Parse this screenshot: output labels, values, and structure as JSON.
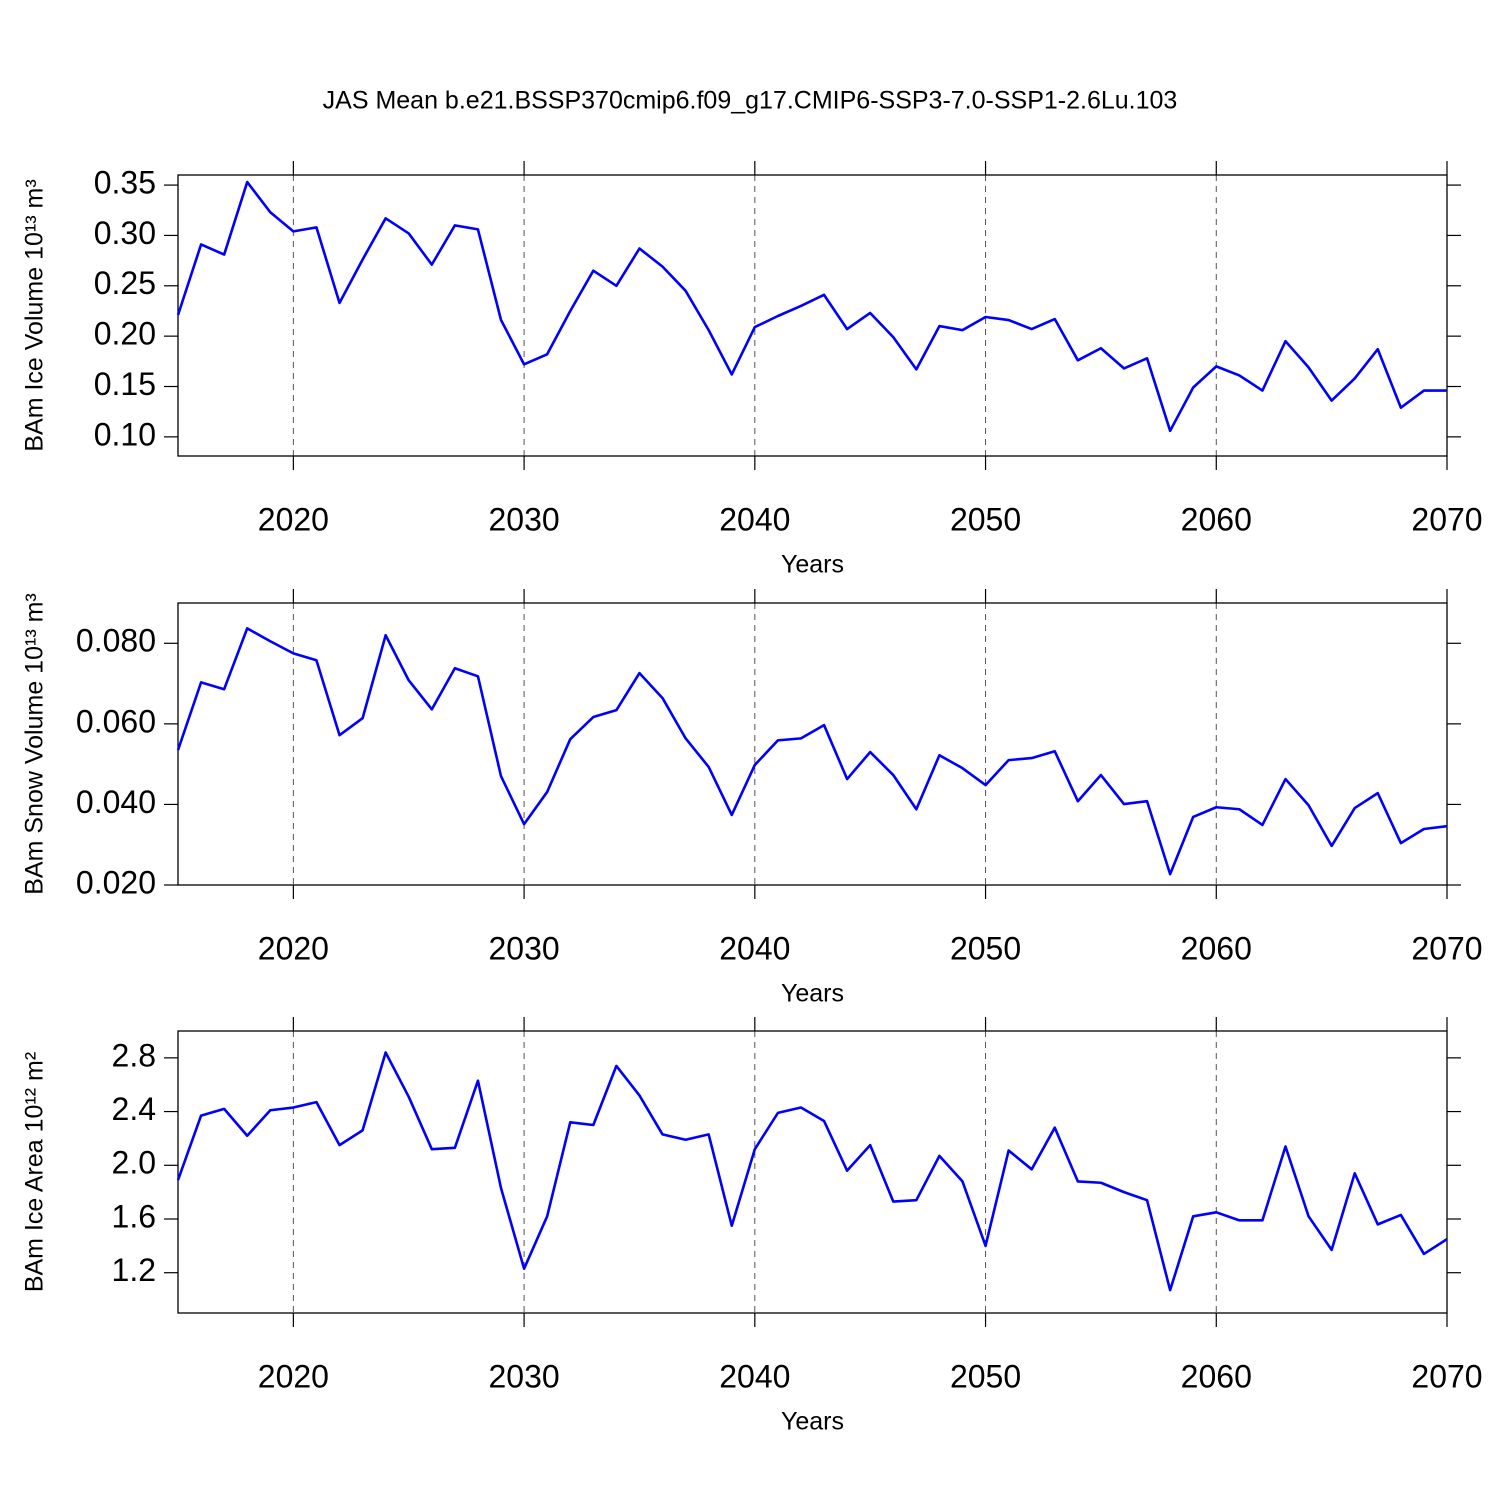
{
  "title": "JAS Mean b.e21.BSSP370cmip6.f09_g17.CMIP6-SSP3-7.0-SSP1-2.6Lu.103",
  "chart_data": [
    {
      "type": "line",
      "ylabel": "BAm Ice Volume 10¹³ m³",
      "xlabel": "Years",
      "color": "#0000ff",
      "xgrid": true,
      "x": [
        2015,
        2016,
        2017,
        2018,
        2019,
        2020,
        2021,
        2022,
        2023,
        2024,
        2025,
        2026,
        2027,
        2028,
        2029,
        2030,
        2031,
        2032,
        2033,
        2034,
        2035,
        2036,
        2037,
        2038,
        2039,
        2040,
        2041,
        2042,
        2043,
        2044,
        2045,
        2046,
        2047,
        2048,
        2049,
        2050,
        2051,
        2052,
        2053,
        2054,
        2055,
        2056,
        2057,
        2058,
        2059,
        2060,
        2061,
        2062,
        2063,
        2064,
        2065,
        2066,
        2067,
        2068,
        2069,
        2070
      ],
      "values": [
        0.221,
        0.291,
        0.281,
        0.353,
        0.323,
        0.304,
        0.308,
        0.233,
        0.276,
        0.317,
        0.302,
        0.271,
        0.31,
        0.306,
        0.216,
        0.172,
        0.182,
        0.225,
        0.265,
        0.25,
        0.287,
        0.269,
        0.245,
        0.206,
        0.162,
        0.209,
        0.22,
        0.23,
        0.241,
        0.207,
        0.223,
        0.199,
        0.167,
        0.21,
        0.206,
        0.219,
        0.216,
        0.207,
        0.217,
        0.176,
        0.188,
        0.168,
        0.178,
        0.106,
        0.149,
        0.17,
        0.161,
        0.146,
        0.195,
        0.169,
        0.136,
        0.158,
        0.187,
        0.129,
        0.146,
        0.146
      ],
      "xlim": [
        2015,
        2070
      ],
      "xticks": [
        2020,
        2030,
        2040,
        2050,
        2060,
        2070
      ],
      "ylim": [
        0.081,
        0.36
      ],
      "yticks": [
        {
          "value": 0.1,
          "label": "0.10"
        },
        {
          "value": 0.15,
          "label": "0.15"
        },
        {
          "value": 0.2,
          "label": "0.20"
        },
        {
          "value": 0.25,
          "label": "0.25"
        },
        {
          "value": 0.3,
          "label": "0.30"
        },
        {
          "value": 0.35,
          "label": "0.35"
        }
      ]
    },
    {
      "type": "line",
      "ylabel": "BAm Snow Volume 10¹³ m³",
      "xlabel": "Years",
      "color": "#0000ff",
      "xgrid": true,
      "x": [
        2015,
        2016,
        2017,
        2018,
        2019,
        2020,
        2021,
        2022,
        2023,
        2024,
        2025,
        2026,
        2027,
        2028,
        2029,
        2030,
        2031,
        2032,
        2033,
        2034,
        2035,
        2036,
        2037,
        2038,
        2039,
        2040,
        2041,
        2042,
        2043,
        2044,
        2045,
        2046,
        2047,
        2048,
        2049,
        2050,
        2051,
        2052,
        2053,
        2054,
        2055,
        2056,
        2057,
        2058,
        2059,
        2060,
        2061,
        2062,
        2063,
        2064,
        2065,
        2066,
        2067,
        2068,
        2069,
        2070
      ],
      "values": [
        0.0535,
        0.0703,
        0.0686,
        0.0837,
        0.0805,
        0.0775,
        0.0758,
        0.0572,
        0.0614,
        0.082,
        0.0708,
        0.0636,
        0.0738,
        0.0718,
        0.047,
        0.0351,
        0.0431,
        0.0562,
        0.0617,
        0.0634,
        0.0726,
        0.0664,
        0.0564,
        0.0493,
        0.0374,
        0.0498,
        0.0559,
        0.0564,
        0.0597,
        0.0463,
        0.053,
        0.0473,
        0.0388,
        0.0522,
        0.049,
        0.0448,
        0.051,
        0.0515,
        0.0532,
        0.0408,
        0.0473,
        0.0401,
        0.0408,
        0.0227,
        0.0369,
        0.0393,
        0.0388,
        0.0349,
        0.0463,
        0.0398,
        0.0297,
        0.0391,
        0.0428,
        0.0304,
        0.0339,
        0.0346
      ],
      "xlim": [
        2015,
        2070
      ],
      "xticks": [
        2020,
        2030,
        2040,
        2050,
        2060,
        2070
      ],
      "ylim": [
        0.02,
        0.09
      ],
      "yticks": [
        {
          "value": 0.02,
          "label": "0.020"
        },
        {
          "value": 0.04,
          "label": "0.040"
        },
        {
          "value": 0.06,
          "label": "0.060"
        },
        {
          "value": 0.08,
          "label": "0.080"
        }
      ]
    },
    {
      "type": "line",
      "ylabel": "BAm Ice Area 10¹² m²",
      "xlabel": "Years",
      "color": "#0000ff",
      "xgrid": true,
      "x": [
        2015,
        2016,
        2017,
        2018,
        2019,
        2020,
        2021,
        2022,
        2023,
        2024,
        2025,
        2026,
        2027,
        2028,
        2029,
        2030,
        2031,
        2032,
        2033,
        2034,
        2035,
        2036,
        2037,
        2038,
        2039,
        2040,
        2041,
        2042,
        2043,
        2044,
        2045,
        2046,
        2047,
        2048,
        2049,
        2050,
        2051,
        2052,
        2053,
        2054,
        2055,
        2056,
        2057,
        2058,
        2059,
        2060,
        2061,
        2062,
        2063,
        2064,
        2065,
        2066,
        2067,
        2068,
        2069,
        2070
      ],
      "values": [
        1.89,
        2.37,
        2.42,
        2.22,
        2.41,
        2.43,
        2.47,
        2.15,
        2.26,
        2.84,
        2.51,
        2.12,
        2.13,
        2.63,
        1.83,
        1.23,
        1.62,
        2.32,
        2.3,
        2.74,
        2.52,
        2.23,
        2.19,
        2.23,
        1.55,
        2.12,
        2.39,
        2.43,
        2.33,
        1.96,
        2.15,
        1.73,
        1.74,
        2.07,
        1.88,
        1.4,
        2.11,
        1.97,
        2.28,
        1.88,
        1.87,
        1.8,
        1.74,
        1.07,
        1.62,
        1.65,
        1.59,
        1.59,
        2.14,
        1.62,
        1.37,
        1.94,
        1.56,
        1.63,
        1.34,
        1.45
      ],
      "xlim": [
        2015,
        2070
      ],
      "xticks": [
        2020,
        2030,
        2040,
        2050,
        2060,
        2070
      ],
      "ylim": [
        0.9,
        3.0
      ],
      "yticks": [
        1.2,
        1.6,
        {
          "value": 2.0,
          "label": "2.0"
        },
        2.4,
        2.8
      ]
    }
  ]
}
